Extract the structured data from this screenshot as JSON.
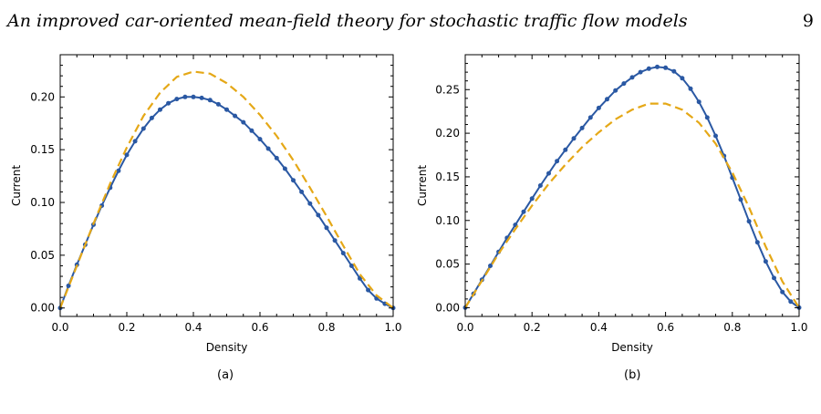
{
  "header": {
    "running_title": "An improved car-oriented mean-field theory for stochastic traffic flow models",
    "page_number": "9"
  },
  "colors": {
    "simulation": "#2a58a3",
    "theory": "#e5a817",
    "axis": "#000000"
  },
  "figures": [
    {
      "caption_label": "(a)"
    },
    {
      "caption_label": "(b)"
    }
  ],
  "chart_data": [
    {
      "type": "line",
      "xlabel": "Density",
      "ylabel": "Current",
      "xlim": [
        0.0,
        1.0
      ],
      "ylim": [
        -0.008,
        0.24
      ],
      "xticks": [
        "0.0",
        "0.2",
        "0.4",
        "0.6",
        "0.8",
        "1.0"
      ],
      "yticks": [
        "0.00",
        "0.05",
        "0.10",
        "0.15",
        "0.20"
      ],
      "series": [
        {
          "style": "solid-dots",
          "x": [
            0.0,
            0.025,
            0.05,
            0.075,
            0.1,
            0.125,
            0.15,
            0.175,
            0.2,
            0.225,
            0.25,
            0.275,
            0.3,
            0.325,
            0.35,
            0.375,
            0.4,
            0.425,
            0.45,
            0.475,
            0.5,
            0.525,
            0.55,
            0.575,
            0.6,
            0.625,
            0.65,
            0.675,
            0.7,
            0.725,
            0.75,
            0.775,
            0.8,
            0.825,
            0.85,
            0.875,
            0.9,
            0.925,
            0.95,
            0.975,
            1.0
          ],
          "y": [
            0.0,
            0.021,
            0.041,
            0.06,
            0.079,
            0.097,
            0.114,
            0.13,
            0.145,
            0.158,
            0.17,
            0.18,
            0.188,
            0.194,
            0.198,
            0.2,
            0.2,
            0.199,
            0.197,
            0.193,
            0.188,
            0.182,
            0.176,
            0.168,
            0.16,
            0.151,
            0.142,
            0.132,
            0.121,
            0.11,
            0.099,
            0.088,
            0.076,
            0.064,
            0.052,
            0.04,
            0.028,
            0.017,
            0.009,
            0.004,
            0.0
          ]
        },
        {
          "style": "dashed",
          "x": [
            0.0,
            0.05,
            0.1,
            0.15,
            0.2,
            0.25,
            0.3,
            0.35,
            0.4,
            0.45,
            0.5,
            0.55,
            0.6,
            0.65,
            0.7,
            0.75,
            0.8,
            0.85,
            0.9,
            0.95,
            1.0
          ],
          "y": [
            0.0,
            0.04,
            0.08,
            0.118,
            0.152,
            0.182,
            0.204,
            0.219,
            0.224,
            0.222,
            0.213,
            0.2,
            0.183,
            0.163,
            0.14,
            0.114,
            0.087,
            0.059,
            0.032,
            0.012,
            0.0
          ]
        }
      ]
    },
    {
      "type": "line",
      "xlabel": "Density",
      "ylabel": "Current",
      "xlim": [
        0.0,
        1.0
      ],
      "ylim": [
        -0.01,
        0.29
      ],
      "xticks": [
        "0.0",
        "0.2",
        "0.4",
        "0.6",
        "0.8",
        "1.0"
      ],
      "yticks": [
        "0.00",
        "0.05",
        "0.10",
        "0.15",
        "0.20",
        "0.25"
      ],
      "series": [
        {
          "style": "solid-dots",
          "x": [
            0.0,
            0.025,
            0.05,
            0.075,
            0.1,
            0.125,
            0.15,
            0.175,
            0.2,
            0.225,
            0.25,
            0.275,
            0.3,
            0.325,
            0.35,
            0.375,
            0.4,
            0.425,
            0.45,
            0.475,
            0.5,
            0.525,
            0.55,
            0.575,
            0.6,
            0.625,
            0.65,
            0.675,
            0.7,
            0.725,
            0.75,
            0.775,
            0.8,
            0.825,
            0.85,
            0.875,
            0.9,
            0.925,
            0.95,
            0.975,
            1.0
          ],
          "y": [
            0.0,
            0.016,
            0.032,
            0.048,
            0.064,
            0.08,
            0.095,
            0.11,
            0.125,
            0.14,
            0.154,
            0.168,
            0.181,
            0.194,
            0.206,
            0.218,
            0.229,
            0.239,
            0.249,
            0.257,
            0.264,
            0.27,
            0.274,
            0.276,
            0.275,
            0.271,
            0.263,
            0.251,
            0.236,
            0.218,
            0.197,
            0.174,
            0.149,
            0.124,
            0.099,
            0.075,
            0.053,
            0.034,
            0.018,
            0.007,
            0.0
          ]
        },
        {
          "style": "dashed",
          "x": [
            0.0,
            0.05,
            0.1,
            0.15,
            0.2,
            0.25,
            0.3,
            0.35,
            0.4,
            0.45,
            0.5,
            0.55,
            0.6,
            0.65,
            0.7,
            0.75,
            0.8,
            0.85,
            0.9,
            0.95,
            1.0
          ],
          "y": [
            0.0,
            0.031,
            0.062,
            0.09,
            0.117,
            0.142,
            0.164,
            0.184,
            0.201,
            0.216,
            0.227,
            0.234,
            0.234,
            0.227,
            0.212,
            0.188,
            0.155,
            0.115,
            0.07,
            0.03,
            0.0
          ]
        }
      ]
    }
  ]
}
